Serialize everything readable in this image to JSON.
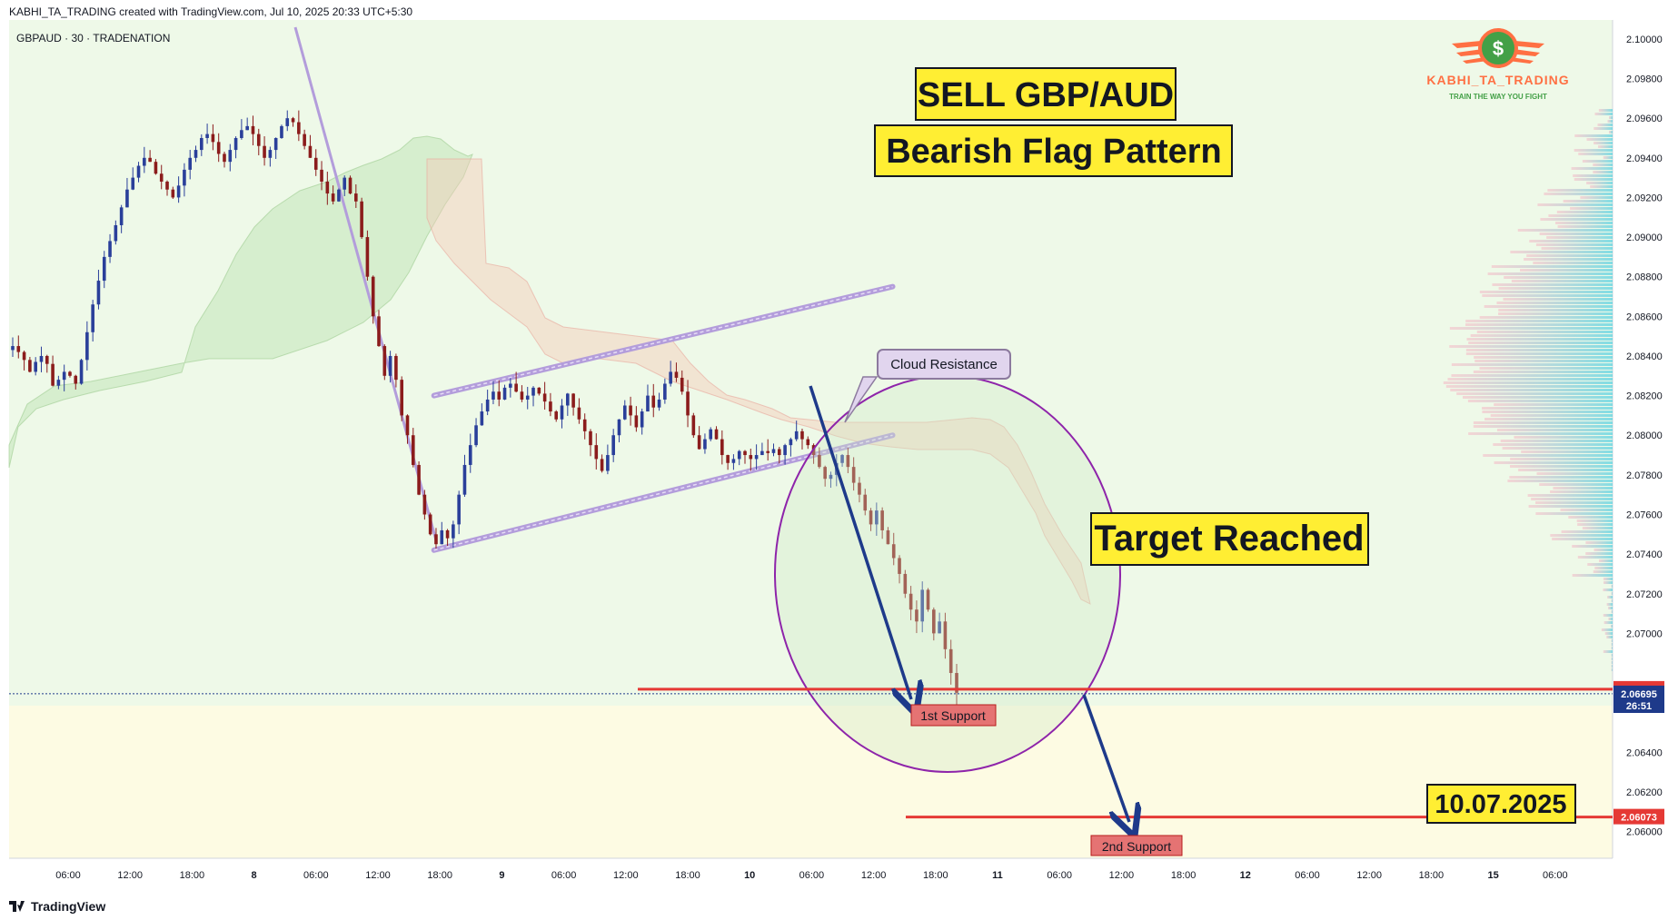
{
  "header": {
    "attribution": "KABHI_TA_TRADING created with TradingView.com, Jul 10, 2025 20:33 UTC+5:30",
    "symbol": "GBPAUD · 30 · TRADENATION"
  },
  "brand": {
    "name": "KABHI_TA_TRADING",
    "tagline": "TRAIN THE WAY YOU FIGHT",
    "icon": "dollar-coin-wings-icon"
  },
  "annotations": {
    "title_sell": "SELL GBP/AUD",
    "title_pattern": "Bearish Flag Pattern",
    "target": "Target Reached",
    "date": "10.07.2025",
    "cloud_resistance": "Cloud Resistance",
    "support1": "1st Support",
    "support2": "2nd Support"
  },
  "footer": {
    "brand": "TradingView",
    "logo_icon": "tradingview-logo-icon"
  },
  "colors": {
    "bull": "#2a3f9a",
    "bear": "#8b1c1c",
    "support_line": "#e53935",
    "flag": "#b39ddb",
    "arrow": "#1e3a8a",
    "label_yellow": "#ffee33",
    "circle": "#8e24aa"
  },
  "chart_data": {
    "type": "candlestick",
    "symbol": "GBPAUD",
    "timeframe": "30",
    "ylim": [
      2.0592,
      2.1005
    ],
    "y_ticks": [
      "2.10000",
      "2.09800",
      "2.09600",
      "2.09400",
      "2.09200",
      "2.09000",
      "2.08800",
      "2.08600",
      "2.08400",
      "2.08200",
      "2.08000",
      "2.07800",
      "2.07600",
      "2.07400",
      "2.07200",
      "2.07000",
      "2.06400",
      "2.06200",
      "2.06000"
    ],
    "x_ticks": [
      "06:00",
      "12:00",
      "18:00",
      "8",
      "06:00",
      "12:00",
      "18:00",
      "9",
      "06:00",
      "12:00",
      "18:00",
      "10",
      "06:00",
      "12:00",
      "18:00",
      "11",
      "06:00",
      "12:00",
      "18:00",
      "12",
      "06:00",
      "12:00",
      "18:00",
      "15",
      "06:00",
      "12"
    ],
    "price_labels": [
      {
        "text": "2.06718",
        "value": 2.06718,
        "color": "#e53935"
      },
      {
        "text": "2.06695",
        "value": 2.06695,
        "color": "#1e3a8a"
      },
      {
        "text": "26:51",
        "value": 2.06635,
        "color": "#1e3a8a"
      },
      {
        "text": "2.06073",
        "value": 2.06073,
        "color": "#e53935"
      }
    ],
    "support_levels": [
      2.06718,
      2.06073
    ],
    "close_series": [
      2.0845,
      2.0842,
      2.0838,
      2.0832,
      2.0837,
      2.084,
      2.0836,
      2.0825,
      2.0828,
      2.0832,
      2.083,
      2.0826,
      2.0838,
      2.0852,
      2.0866,
      2.0878,
      2.089,
      2.0898,
      2.0906,
      2.0915,
      2.0924,
      2.093,
      2.0936,
      2.094,
      2.0938,
      2.0932,
      2.0928,
      2.0924,
      2.092,
      2.0926,
      2.0934,
      2.094,
      2.0944,
      2.095,
      2.0952,
      2.0948,
      2.0942,
      2.0938,
      2.0944,
      2.095,
      2.0954,
      2.0956,
      2.0952,
      2.0946,
      2.094,
      2.0944,
      2.095,
      2.0956,
      2.096,
      2.0958,
      2.0952,
      2.0946,
      2.094,
      2.0934,
      2.0928,
      2.0922,
      2.0918,
      2.0924,
      2.093,
      2.0922,
      2.0918,
      2.09,
      2.088,
      2.086,
      2.0845,
      2.083,
      2.084,
      2.0828,
      2.081,
      2.08,
      2.0785,
      2.077,
      2.076,
      2.075,
      2.0745,
      2.0752,
      2.0748,
      2.0755,
      2.077,
      2.0785,
      2.0795,
      2.0805,
      2.0812,
      2.0818,
      2.0822,
      2.0818,
      2.0824,
      2.0826,
      2.0822,
      2.0818,
      2.082,
      2.0824,
      2.0821,
      2.0817,
      2.0812,
      2.0808,
      2.0815,
      2.0821,
      2.0814,
      2.0808,
      2.0802,
      2.0795,
      2.0788,
      2.0782,
      2.079,
      2.08,
      2.0808,
      2.0815,
      2.081,
      2.0804,
      2.0812,
      2.082,
      2.0814,
      2.0818,
      2.0826,
      2.0832,
      2.0829,
      2.0822,
      2.081,
      2.08,
      2.0793,
      2.0798,
      2.0803,
      2.0798,
      2.079,
      2.0786,
      2.0788,
      2.0792,
      2.079,
      2.0788,
      2.079,
      2.0792,
      2.0791,
      2.0793,
      2.079,
      2.0795,
      2.0798,
      2.0802,
      2.0798,
      2.0795,
      2.079,
      2.0784,
      2.0778,
      2.078,
      2.0786,
      2.079,
      2.0784,
      2.0776,
      2.077,
      2.0762,
      2.0755,
      2.0762,
      2.0752,
      2.0745,
      2.0738,
      2.073,
      2.072,
      2.0712,
      2.0706,
      2.0722,
      2.0712,
      2.07,
      2.0706,
      2.0692,
      2.068,
      2.067
    ],
    "flag_channel": {
      "upper": [
        [
          0.265,
          2.082
        ],
        [
          0.551,
          2.0875
        ]
      ],
      "lower": [
        [
          0.265,
          2.0742
        ],
        [
          0.551,
          2.08
        ]
      ]
    }
  }
}
